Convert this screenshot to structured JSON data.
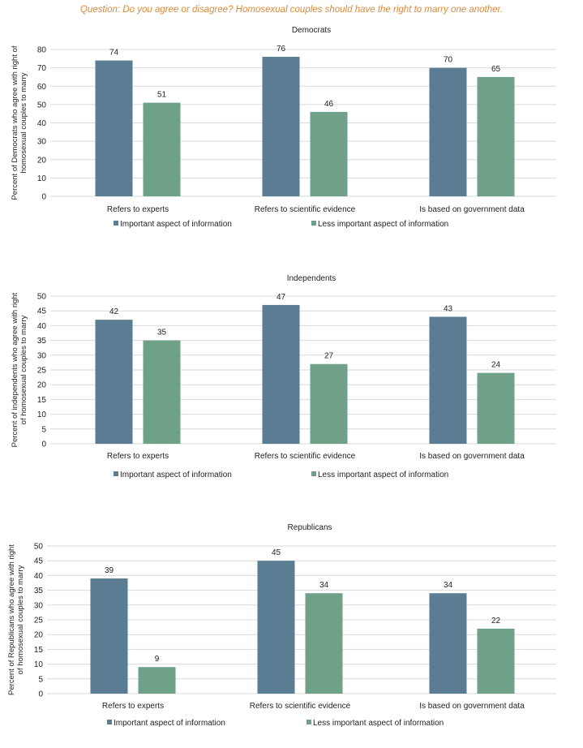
{
  "question": "Question: Do you agree or disagree? Homosexual couples should have the right to marry one another.",
  "colors": {
    "important": "#5b7d94",
    "less": "#6fa088",
    "question": "#d98a3c"
  },
  "chart_data": [
    {
      "type": "bar",
      "title": "Democrats",
      "ylabel_lines": [
        "Percent of Democrats who agree with right of",
        "homosexual couples to marry"
      ],
      "categories": [
        "Refers to experts",
        "Refers to scientific evidence",
        "Is based on government data"
      ],
      "series": [
        {
          "name": "Important aspect of information",
          "values": [
            74,
            76,
            70
          ]
        },
        {
          "name": "Less important aspect of information",
          "values": [
            51,
            46,
            65
          ]
        }
      ],
      "ylim": [
        0,
        80
      ],
      "ystep": 10,
      "grid": true,
      "legend": "bottom-center"
    },
    {
      "type": "bar",
      "title": "Independents",
      "ylabel_lines": [
        "Percent of independents who agree with right",
        "of homosexual couples to marry"
      ],
      "categories": [
        "Refers to experts",
        "Refers to scientific evidence",
        "Is based on government data"
      ],
      "series": [
        {
          "name": "Important aspect of information",
          "values": [
            42,
            47,
            43
          ]
        },
        {
          "name": "Less important aspect of information",
          "values": [
            35,
            27,
            24
          ]
        }
      ],
      "ylim": [
        0,
        50
      ],
      "ystep": 5,
      "grid": true,
      "legend": "bottom-center"
    },
    {
      "type": "bar",
      "title": "Republicans",
      "ylabel_lines": [
        "Percent of Republicans who agree with right",
        "of homosexual couples to marry"
      ],
      "categories": [
        "Refers to experts",
        "Refers to scientific evidence",
        "Is based on government data"
      ],
      "series": [
        {
          "name": "Important aspect of information",
          "values": [
            39,
            45,
            34
          ]
        },
        {
          "name": "Less important aspect of information",
          "values": [
            9,
            34,
            22
          ]
        }
      ],
      "ylim": [
        0,
        50
      ],
      "ystep": 5,
      "grid": true,
      "legend": "bottom-center"
    }
  ]
}
